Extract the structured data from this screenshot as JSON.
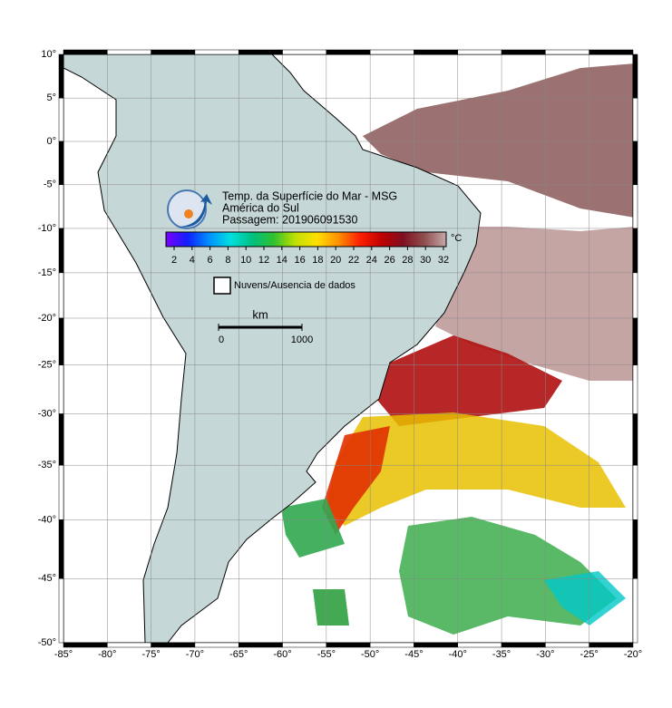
{
  "map": {
    "title_lines": [
      "Temp. da Superfície do Mar - MSG",
      "América do Sul",
      "Passagem: 201906091530"
    ],
    "colorbar": {
      "ticks": [
        2,
        4,
        6,
        8,
        10,
        12,
        14,
        16,
        18,
        20,
        22,
        24,
        26,
        28,
        30,
        32
      ],
      "unit": "°C",
      "colors": [
        "#7a00ff",
        "#1020ff",
        "#0090ff",
        "#00e0e0",
        "#00c080",
        "#30c030",
        "#c0e000",
        "#ffe000",
        "#ff9000",
        "#ff2000",
        "#c00000",
        "#801020",
        "#905050",
        "#c8a8a8"
      ]
    },
    "legend": "Nuvens/Ausencia de dados",
    "scale": {
      "unit": "km",
      "ticks": [
        0,
        1000
      ]
    },
    "grid": true,
    "lat_ticks": [
      {
        "value": 10,
        "label": "10°"
      },
      {
        "value": 5,
        "label": "5°"
      },
      {
        "value": 0,
        "label": "0°"
      },
      {
        "value": -5,
        "label": "-5°"
      },
      {
        "value": -10,
        "label": "-10°"
      },
      {
        "value": -15,
        "label": "-15°"
      },
      {
        "value": -20,
        "label": "-20°"
      },
      {
        "value": -25,
        "label": "-25°"
      },
      {
        "value": -30,
        "label": "-30°"
      },
      {
        "value": -35,
        "label": "-35°"
      },
      {
        "value": -40,
        "label": "-40°"
      },
      {
        "value": -45,
        "label": "-45°"
      },
      {
        "value": -50,
        "label": "-50°"
      }
    ],
    "lon_ticks": [
      {
        "value": -85,
        "label": "-85°"
      },
      {
        "value": -80,
        "label": "-80°"
      },
      {
        "value": -75,
        "label": "-75°"
      },
      {
        "value": -70,
        "label": "-70°"
      },
      {
        "value": -65,
        "label": "-65°"
      },
      {
        "value": -60,
        "label": "-60°"
      },
      {
        "value": -55,
        "label": "-55°"
      },
      {
        "value": -50,
        "label": "-50°"
      },
      {
        "value": -45,
        "label": "-45°"
      },
      {
        "value": -40,
        "label": "-40°"
      },
      {
        "value": -35,
        "label": "-35°"
      },
      {
        "value": -30,
        "label": "-30°"
      },
      {
        "value": -25,
        "label": "-25°"
      },
      {
        "value": -20,
        "label": "-20°"
      }
    ]
  }
}
